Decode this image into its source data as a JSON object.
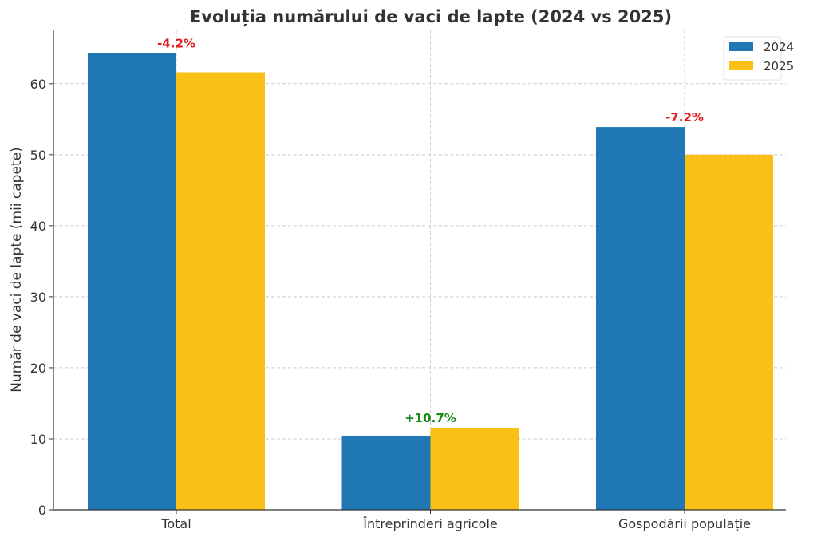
{
  "chart_data": {
    "type": "bar",
    "title": "Evoluția numărului de vaci de lapte (2024 vs 2025)",
    "xlabel": "",
    "ylabel": "Număr de vaci de lapte (mii capete)",
    "categories": [
      "Total",
      "Întreprinderi agricole",
      "Gospodării populație"
    ],
    "series": [
      {
        "name": "2024",
        "color": "#1f77b4",
        "values": [
          64.3,
          10.45,
          53.9
        ]
      },
      {
        "name": "2025",
        "color": "#fbc015",
        "values": [
          61.6,
          11.57,
          50.0
        ]
      }
    ],
    "annotations": [
      {
        "text": "-4.2%",
        "color": "#e31a1c"
      },
      {
        "text": "+10.7%",
        "color": "#1a8a1a"
      },
      {
        "text": "-7.2%",
        "color": "#e31a1c"
      }
    ],
    "ylim": [
      0,
      67.5
    ],
    "yticks": [
      0,
      10,
      20,
      30,
      40,
      50,
      60
    ],
    "grid": true,
    "legend": "top-right"
  }
}
